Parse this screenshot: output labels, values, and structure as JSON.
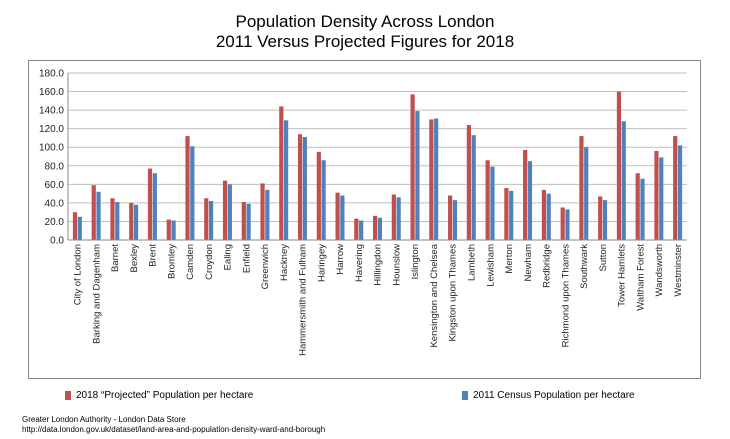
{
  "colors": {
    "projected": "#c0504d",
    "census": "#4f81bd",
    "grid": "#bfbfbf",
    "axis": "#888888"
  },
  "source": {
    "line1": "Greater London Authority - London Data Store",
    "line2": "http://data.london.gov.uk/dataset/land-area-and-population-density-ward-and-borough"
  },
  "chart_data": {
    "type": "bar",
    "title": "Population Density Across London",
    "subtitle": "2011 Versus Projected Figures for 2018",
    "xlabel": "",
    "ylabel": "",
    "ylim": [
      0,
      180
    ],
    "yticks": [
      "0.0",
      "20.0",
      "40.0",
      "60.0",
      "80.0",
      "100.0",
      "120.0",
      "140.0",
      "160.0",
      "180.0"
    ],
    "grid": true,
    "legend_position": "bottom",
    "categories": [
      "City of London",
      "Barking and Dagenham",
      "Barnet",
      "Bexley",
      "Brent",
      "Bromley",
      "Camden",
      "Croydon",
      "Ealing",
      "Enfield",
      "Greenwich",
      "Hackney",
      "Hammersmith and Fulham",
      "Haringey",
      "Harrow",
      "Havering",
      "Hillingdon",
      "Hounslow",
      "Islington",
      "Kensington and Chelsea",
      "Kingston upon Thames",
      "Lambeth",
      "Lewisham",
      "Merton",
      "Newham",
      "Redbridge",
      "Richmond upon Thames",
      "Southwark",
      "Sutton",
      "Tower Hamlets",
      "Waltham Forest",
      "Wandsworth",
      "Westminster"
    ],
    "series": [
      {
        "name": "2018 “Projected” Population per hectare",
        "values": [
          30,
          59,
          45,
          40,
          77,
          22,
          112,
          45,
          64,
          41,
          61,
          144,
          114,
          95,
          51,
          23,
          26,
          49,
          157,
          130,
          48,
          124,
          86,
          56,
          97,
          54,
          35,
          112,
          47,
          160,
          72,
          96,
          112
        ]
      },
      {
        "name": "2011 Census Population per hectare",
        "values": [
          25,
          52,
          41,
          38,
          72,
          21,
          101,
          42,
          60,
          39,
          54,
          129,
          111,
          86,
          48,
          21,
          24,
          46,
          139,
          131,
          43,
          113,
          79,
          53,
          85,
          50,
          33,
          100,
          43,
          128,
          66,
          89,
          102
        ]
      }
    ]
  }
}
